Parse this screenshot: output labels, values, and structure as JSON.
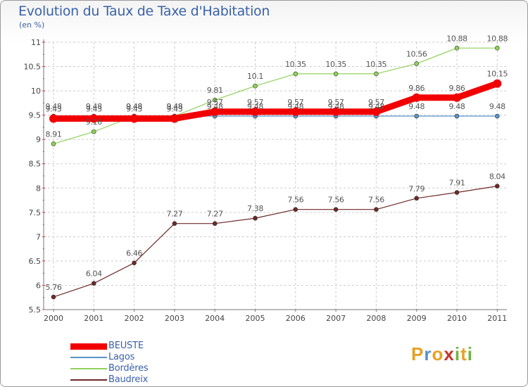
{
  "title": "Evolution du Taux de Taxe d'Habitation",
  "unit_label": "(en %)",
  "logo": {
    "text": "Proxiti",
    "letters": [
      "P",
      "r",
      "o",
      "x",
      "i",
      "t",
      "i"
    ],
    "colors": [
      "#e8a023",
      "#5a8fcf",
      "#e8a023",
      "#c8322a",
      "#6fb53f",
      "#e8a023",
      "#6fb53f"
    ]
  },
  "chart_data": {
    "type": "line",
    "title": "Evolution du Taux de Taxe d'Habitation",
    "ylabel": "(en %)",
    "xlabel": "",
    "x": [
      "2000",
      "2001",
      "2002",
      "2003",
      "2004",
      "2005",
      "2006",
      "2007",
      "2008",
      "2009",
      "2010",
      "2011"
    ],
    "ylim": [
      5.5,
      11
    ],
    "yticks": [
      5.5,
      6,
      6.5,
      7,
      7.5,
      8,
      8.5,
      9,
      9.5,
      10,
      10.5,
      11
    ],
    "ytick_labels": [
      "5.5",
      "6",
      "6.5",
      "7",
      "7.5",
      "8",
      "8.5",
      "9",
      "9.5",
      "10",
      "10.5",
      "11"
    ],
    "grid": true,
    "legend_position": "bottom-left",
    "series": [
      {
        "name": "BEUSTE",
        "color": "#f20000",
        "values": [
          9.43,
          9.43,
          9.43,
          9.43,
          9.57,
          9.57,
          9.57,
          9.57,
          9.57,
          9.86,
          9.86,
          10.15
        ],
        "labels": [
          "9.43",
          "9.43",
          "9.43",
          "9.43",
          "9.57",
          "9.57",
          "9.57",
          "9.57",
          "9.57",
          "9.86",
          "9.86",
          "10.15"
        ],
        "show_labels": [
          true,
          true,
          true,
          true,
          true,
          true,
          true,
          true,
          true,
          true,
          true,
          true
        ]
      },
      {
        "name": "Lagos",
        "color": "#5b93c9",
        "values": [
          9.48,
          9.48,
          9.48,
          9.48,
          9.48,
          9.48,
          9.48,
          9.48,
          9.48,
          9.48,
          9.48,
          9.48
        ],
        "labels": [
          "9.48",
          "9.48",
          "9.48",
          "9.48",
          "9.48",
          "9.48",
          "9.48",
          "9.48",
          "9.48",
          "9.48",
          "9.48",
          "9.48"
        ],
        "show_labels": [
          true,
          true,
          true,
          true,
          true,
          true,
          true,
          true,
          true,
          true,
          true,
          true
        ]
      },
      {
        "name": "Bordères",
        "color": "#8fd258",
        "values": [
          8.91,
          9.16,
          9.48,
          9.48,
          9.81,
          10.1,
          10.35,
          10.35,
          10.35,
          10.56,
          10.88,
          10.88
        ],
        "labels": [
          "8.91",
          "9.16",
          "9.48",
          "9.48",
          "9.81",
          "10.1",
          "10.35",
          "10.35",
          "10.35",
          "10.56",
          "10.88",
          "10.88"
        ],
        "show_labels": [
          true,
          true,
          true,
          true,
          true,
          true,
          true,
          true,
          true,
          true,
          true,
          true
        ]
      },
      {
        "name": "Baudreix",
        "color": "#6e2828",
        "values": [
          5.76,
          6.04,
          6.46,
          7.27,
          7.27,
          7.38,
          7.56,
          7.56,
          7.56,
          7.79,
          7.91,
          8.04
        ],
        "labels": [
          "5.76",
          "6.04",
          "6.46",
          "7.27",
          "7.27",
          "7.38",
          "7.56",
          "7.56",
          "7.56",
          "7.79",
          "7.91",
          "8.04"
        ],
        "show_labels": [
          true,
          true,
          true,
          true,
          true,
          true,
          true,
          true,
          true,
          true,
          true,
          true
        ]
      }
    ]
  }
}
